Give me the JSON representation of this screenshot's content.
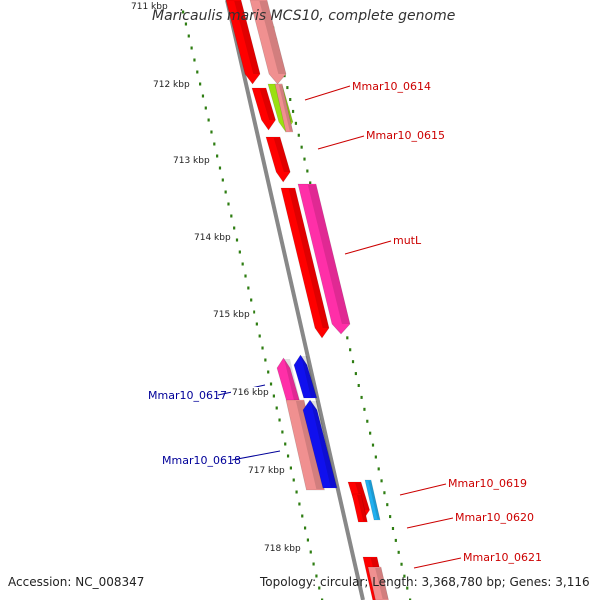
{
  "title": "Maricaulis maris MCS10, complete genome",
  "footer": {
    "accession": "Accession: NC_008347",
    "summary": "Topology: circular; Length: 3,368,780 bp; Genes: 3,116"
  },
  "ticks": [
    "711 kbp",
    "712 kbp",
    "713 kbp",
    "714 kbp",
    "715 kbp",
    "716 kbp",
    "717 kbp",
    "718 kbp"
  ],
  "colors": {
    "backbone": "#888888",
    "tick_mark": "#2e7d12",
    "right_label": "#cc0000",
    "left_label": "#000099",
    "red_gene": "#ff0000",
    "salmon_gene": "#f09090",
    "pink_gene": "#ff2fa8",
    "blue_gene": "#1010ee",
    "lime_gene": "#9ae010",
    "cyan_gene": "#20b0f0"
  },
  "genes": [
    {
      "label": "",
      "color": "red"
    },
    {
      "label": "",
      "color": "salmon"
    },
    {
      "label": "",
      "color": "red"
    },
    {
      "label": "",
      "color": "lime"
    },
    {
      "label": "Mmar10_0614",
      "color": "salmon",
      "label_side": "right"
    },
    {
      "label": "Mmar10_0615",
      "color": "red",
      "label_side": "right"
    },
    {
      "label": "",
      "color": "red"
    },
    {
      "label": "mutL",
      "color": "pink",
      "label_side": "right"
    },
    {
      "label": "Mmar10_0617",
      "color": "pink",
      "label_side": "left"
    },
    {
      "label": "",
      "color": "blue"
    },
    {
      "label": "Mmar10_0618",
      "color": "salmon",
      "label_side": "left"
    },
    {
      "label": "",
      "color": "blue"
    },
    {
      "label": "Mmar10_0619",
      "color": "red",
      "label_side": "right"
    },
    {
      "label": "",
      "color": "cyan"
    },
    {
      "label": "Mmar10_0620",
      "color": "red",
      "label_side": "right"
    },
    {
      "label": "Mmar10_0621",
      "color": "red",
      "label_side": "right"
    },
    {
      "label": "",
      "color": "salmon"
    }
  ]
}
